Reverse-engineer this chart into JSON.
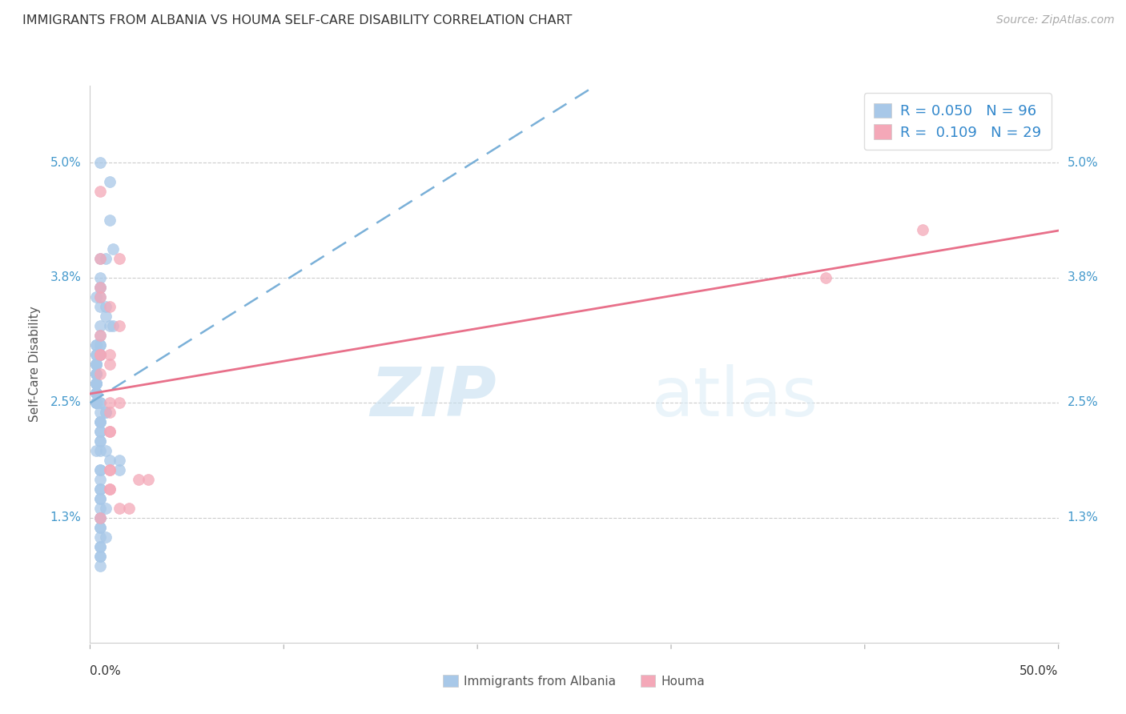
{
  "title": "IMMIGRANTS FROM ALBANIA VS HOUMA SELF-CARE DISABILITY CORRELATION CHART",
  "source": "Source: ZipAtlas.com",
  "ylabel": "Self-Care Disability",
  "ytick_labels": [
    "5.0%",
    "3.8%",
    "2.5%",
    "1.3%"
  ],
  "ytick_values": [
    0.05,
    0.038,
    0.025,
    0.013
  ],
  "xtick_labels": [
    "0.0%",
    "50.0%"
  ],
  "xtick_values": [
    0.0,
    0.5
  ],
  "xlim": [
    0.0,
    0.5
  ],
  "ylim": [
    0.0,
    0.058
  ],
  "legend_label1": "Immigrants from Albania",
  "legend_label2": "Houma",
  "r1": "0.050",
  "n1": "96",
  "r2": "0.109",
  "n2": "29",
  "color_blue": "#a8c8e8",
  "color_pink": "#f4a8b8",
  "trendline1_color": "#7ab0d8",
  "trendline2_color": "#e8708a",
  "watermark_zip": "ZIP",
  "watermark_atlas": "atlas",
  "blue_points_x": [
    0.005,
    0.01,
    0.01,
    0.012,
    0.005,
    0.008,
    0.005,
    0.005,
    0.005,
    0.003,
    0.005,
    0.005,
    0.008,
    0.008,
    0.01,
    0.012,
    0.005,
    0.005,
    0.005,
    0.003,
    0.003,
    0.005,
    0.005,
    0.005,
    0.005,
    0.005,
    0.005,
    0.003,
    0.003,
    0.003,
    0.003,
    0.003,
    0.003,
    0.003,
    0.003,
    0.003,
    0.003,
    0.003,
    0.003,
    0.003,
    0.003,
    0.003,
    0.003,
    0.003,
    0.003,
    0.003,
    0.003,
    0.003,
    0.003,
    0.003,
    0.003,
    0.003,
    0.003,
    0.003,
    0.003,
    0.003,
    0.003,
    0.003,
    0.005,
    0.005,
    0.005,
    0.008,
    0.008,
    0.005,
    0.005,
    0.005,
    0.005,
    0.005,
    0.005,
    0.005,
    0.005,
    0.003,
    0.008,
    0.01,
    0.015,
    0.015,
    0.005,
    0.005,
    0.005,
    0.005,
    0.005,
    0.005,
    0.005,
    0.005,
    0.008,
    0.005,
    0.005,
    0.005,
    0.005,
    0.005,
    0.008,
    0.005,
    0.005,
    0.005,
    0.005,
    0.005
  ],
  "blue_points_y": [
    0.05,
    0.048,
    0.044,
    0.041,
    0.04,
    0.04,
    0.038,
    0.037,
    0.037,
    0.036,
    0.036,
    0.035,
    0.035,
    0.034,
    0.033,
    0.033,
    0.033,
    0.032,
    0.031,
    0.031,
    0.031,
    0.031,
    0.03,
    0.03,
    0.03,
    0.03,
    0.03,
    0.03,
    0.03,
    0.029,
    0.029,
    0.029,
    0.029,
    0.029,
    0.029,
    0.029,
    0.028,
    0.028,
    0.028,
    0.028,
    0.028,
    0.027,
    0.027,
    0.027,
    0.027,
    0.027,
    0.027,
    0.027,
    0.026,
    0.026,
    0.026,
    0.026,
    0.026,
    0.026,
    0.025,
    0.025,
    0.025,
    0.025,
    0.025,
    0.025,
    0.024,
    0.024,
    0.024,
    0.023,
    0.023,
    0.023,
    0.022,
    0.022,
    0.021,
    0.021,
    0.02,
    0.02,
    0.02,
    0.019,
    0.019,
    0.018,
    0.018,
    0.018,
    0.017,
    0.016,
    0.016,
    0.015,
    0.015,
    0.014,
    0.014,
    0.013,
    0.013,
    0.012,
    0.012,
    0.011,
    0.011,
    0.01,
    0.01,
    0.009,
    0.009,
    0.008
  ],
  "pink_points_x": [
    0.005,
    0.005,
    0.015,
    0.005,
    0.005,
    0.01,
    0.015,
    0.005,
    0.005,
    0.005,
    0.01,
    0.01,
    0.005,
    0.015,
    0.01,
    0.01,
    0.01,
    0.01,
    0.01,
    0.01,
    0.025,
    0.03,
    0.01,
    0.01,
    0.015,
    0.02,
    0.38,
    0.43,
    0.005
  ],
  "pink_points_y": [
    0.047,
    0.04,
    0.04,
    0.037,
    0.036,
    0.035,
    0.033,
    0.032,
    0.03,
    0.03,
    0.03,
    0.029,
    0.028,
    0.025,
    0.025,
    0.024,
    0.022,
    0.022,
    0.018,
    0.018,
    0.017,
    0.017,
    0.016,
    0.016,
    0.014,
    0.014,
    0.038,
    0.043,
    0.013
  ]
}
